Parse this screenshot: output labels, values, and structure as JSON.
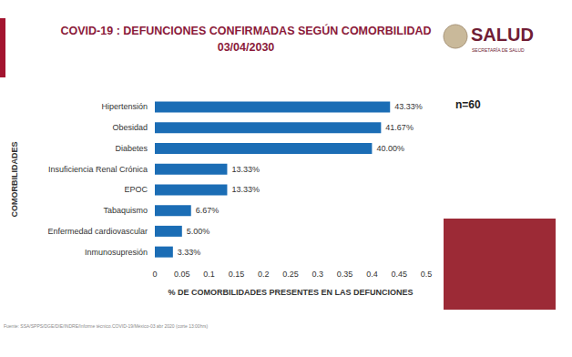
{
  "chart_data": {
    "type": "bar",
    "orientation": "horizontal",
    "title": "COVID-19 : DEFUNCIONES CONFIRMADAS SEGÚN COMORBILIDAD",
    "subtitle": "03/04/2030",
    "categories": [
      "Hipertensión",
      "Obesidad",
      "Diabetes",
      "Insuficiencia Renal Crónica",
      "EPOC",
      "Tabaquismo",
      "Enfermedad cardiovascular",
      "Inmunosupresión"
    ],
    "values": [
      0.4333,
      0.4167,
      0.4,
      0.1333,
      0.1333,
      0.0667,
      0.05,
      0.0333
    ],
    "value_labels": [
      "43.33%",
      "41.67%",
      "40.00%",
      "13.33%",
      "13.33%",
      "6.67%",
      "5.00%",
      "3.33%"
    ],
    "data_labels": true,
    "color": "#1b6db5",
    "xlim": [
      0,
      0.5
    ],
    "xticks": [
      0,
      0.05,
      0.1,
      0.15,
      0.2,
      0.25,
      0.3,
      0.35,
      0.4,
      0.45,
      0.5
    ],
    "xlabel": "% DE COMORBILIDADES PRESENTES EN LAS DEFUNCIONES",
    "ylabel": "COMORBILIDADES",
    "grid": false,
    "annotations": [
      "n=60"
    ],
    "logo": {
      "title": "SALUD",
      "subtitle": "SECRETARÍA DE SALUD"
    },
    "source": "Fuente: SSA/SPPS/DGE/DIE/INDRE/Informe técnico.COVID-19/México-03 abr 2020 (corte 13:00hrs)"
  }
}
